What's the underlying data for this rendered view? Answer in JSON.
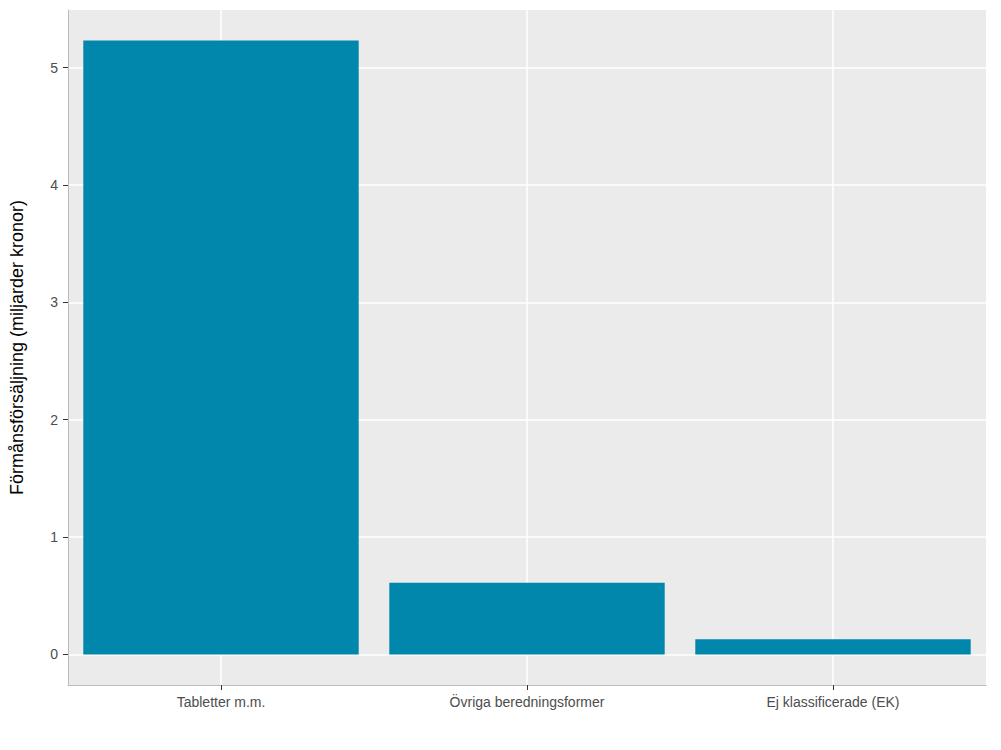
{
  "chart_data": {
    "type": "bar",
    "y_label": "Förmånsförsäljning (miljarder kronor)",
    "categories": [
      "Tabletter m.m.",
      "Övriga beredningsformer",
      "Ej klassificerade (EK)"
    ],
    "values": [
      5.23,
      0.61,
      0.13
    ],
    "color": "#0087AB",
    "ylim": [
      -0.26,
      5.49
    ],
    "yticks": [
      0,
      1,
      2,
      3,
      4,
      5
    ],
    "grid": true
  }
}
